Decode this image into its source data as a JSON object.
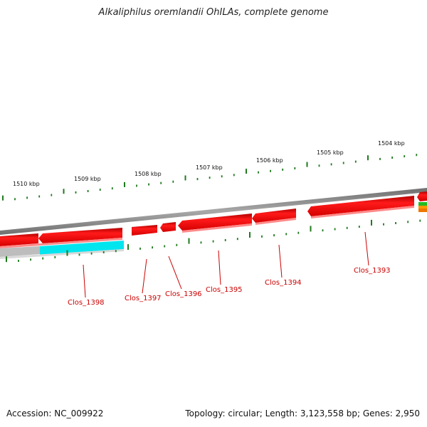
{
  "title": "Alkaliphilus oremlandii OhILAs, complete genome",
  "accession": "Accession: NC_009922",
  "topology_info": "Topology: circular; Length: 3,123,558 bp; Genes: 2,950",
  "colors": {
    "backbone": "#8a8a8a",
    "gene_forward": "#e60000",
    "gene_highlight": "#00e5ee",
    "gene_gray": "#bdbdbd",
    "tick": "#1f7a1f",
    "label": "#cc0000"
  },
  "scale_labels": [
    {
      "text": "1510 kbp"
    },
    {
      "text": "1509 kbp"
    },
    {
      "text": "1508 kbp"
    },
    {
      "text": "1507 kbp"
    },
    {
      "text": "1506 kbp"
    },
    {
      "text": "1505 kbp"
    },
    {
      "text": "1504 kbp"
    }
  ],
  "gene_labels": [
    {
      "text": "Clos_1398"
    },
    {
      "text": "Clos_1397"
    },
    {
      "text": "Clos_1396"
    },
    {
      "text": "Clos_1395"
    },
    {
      "text": "Clos_1394"
    },
    {
      "text": "Clos_1393"
    }
  ]
}
